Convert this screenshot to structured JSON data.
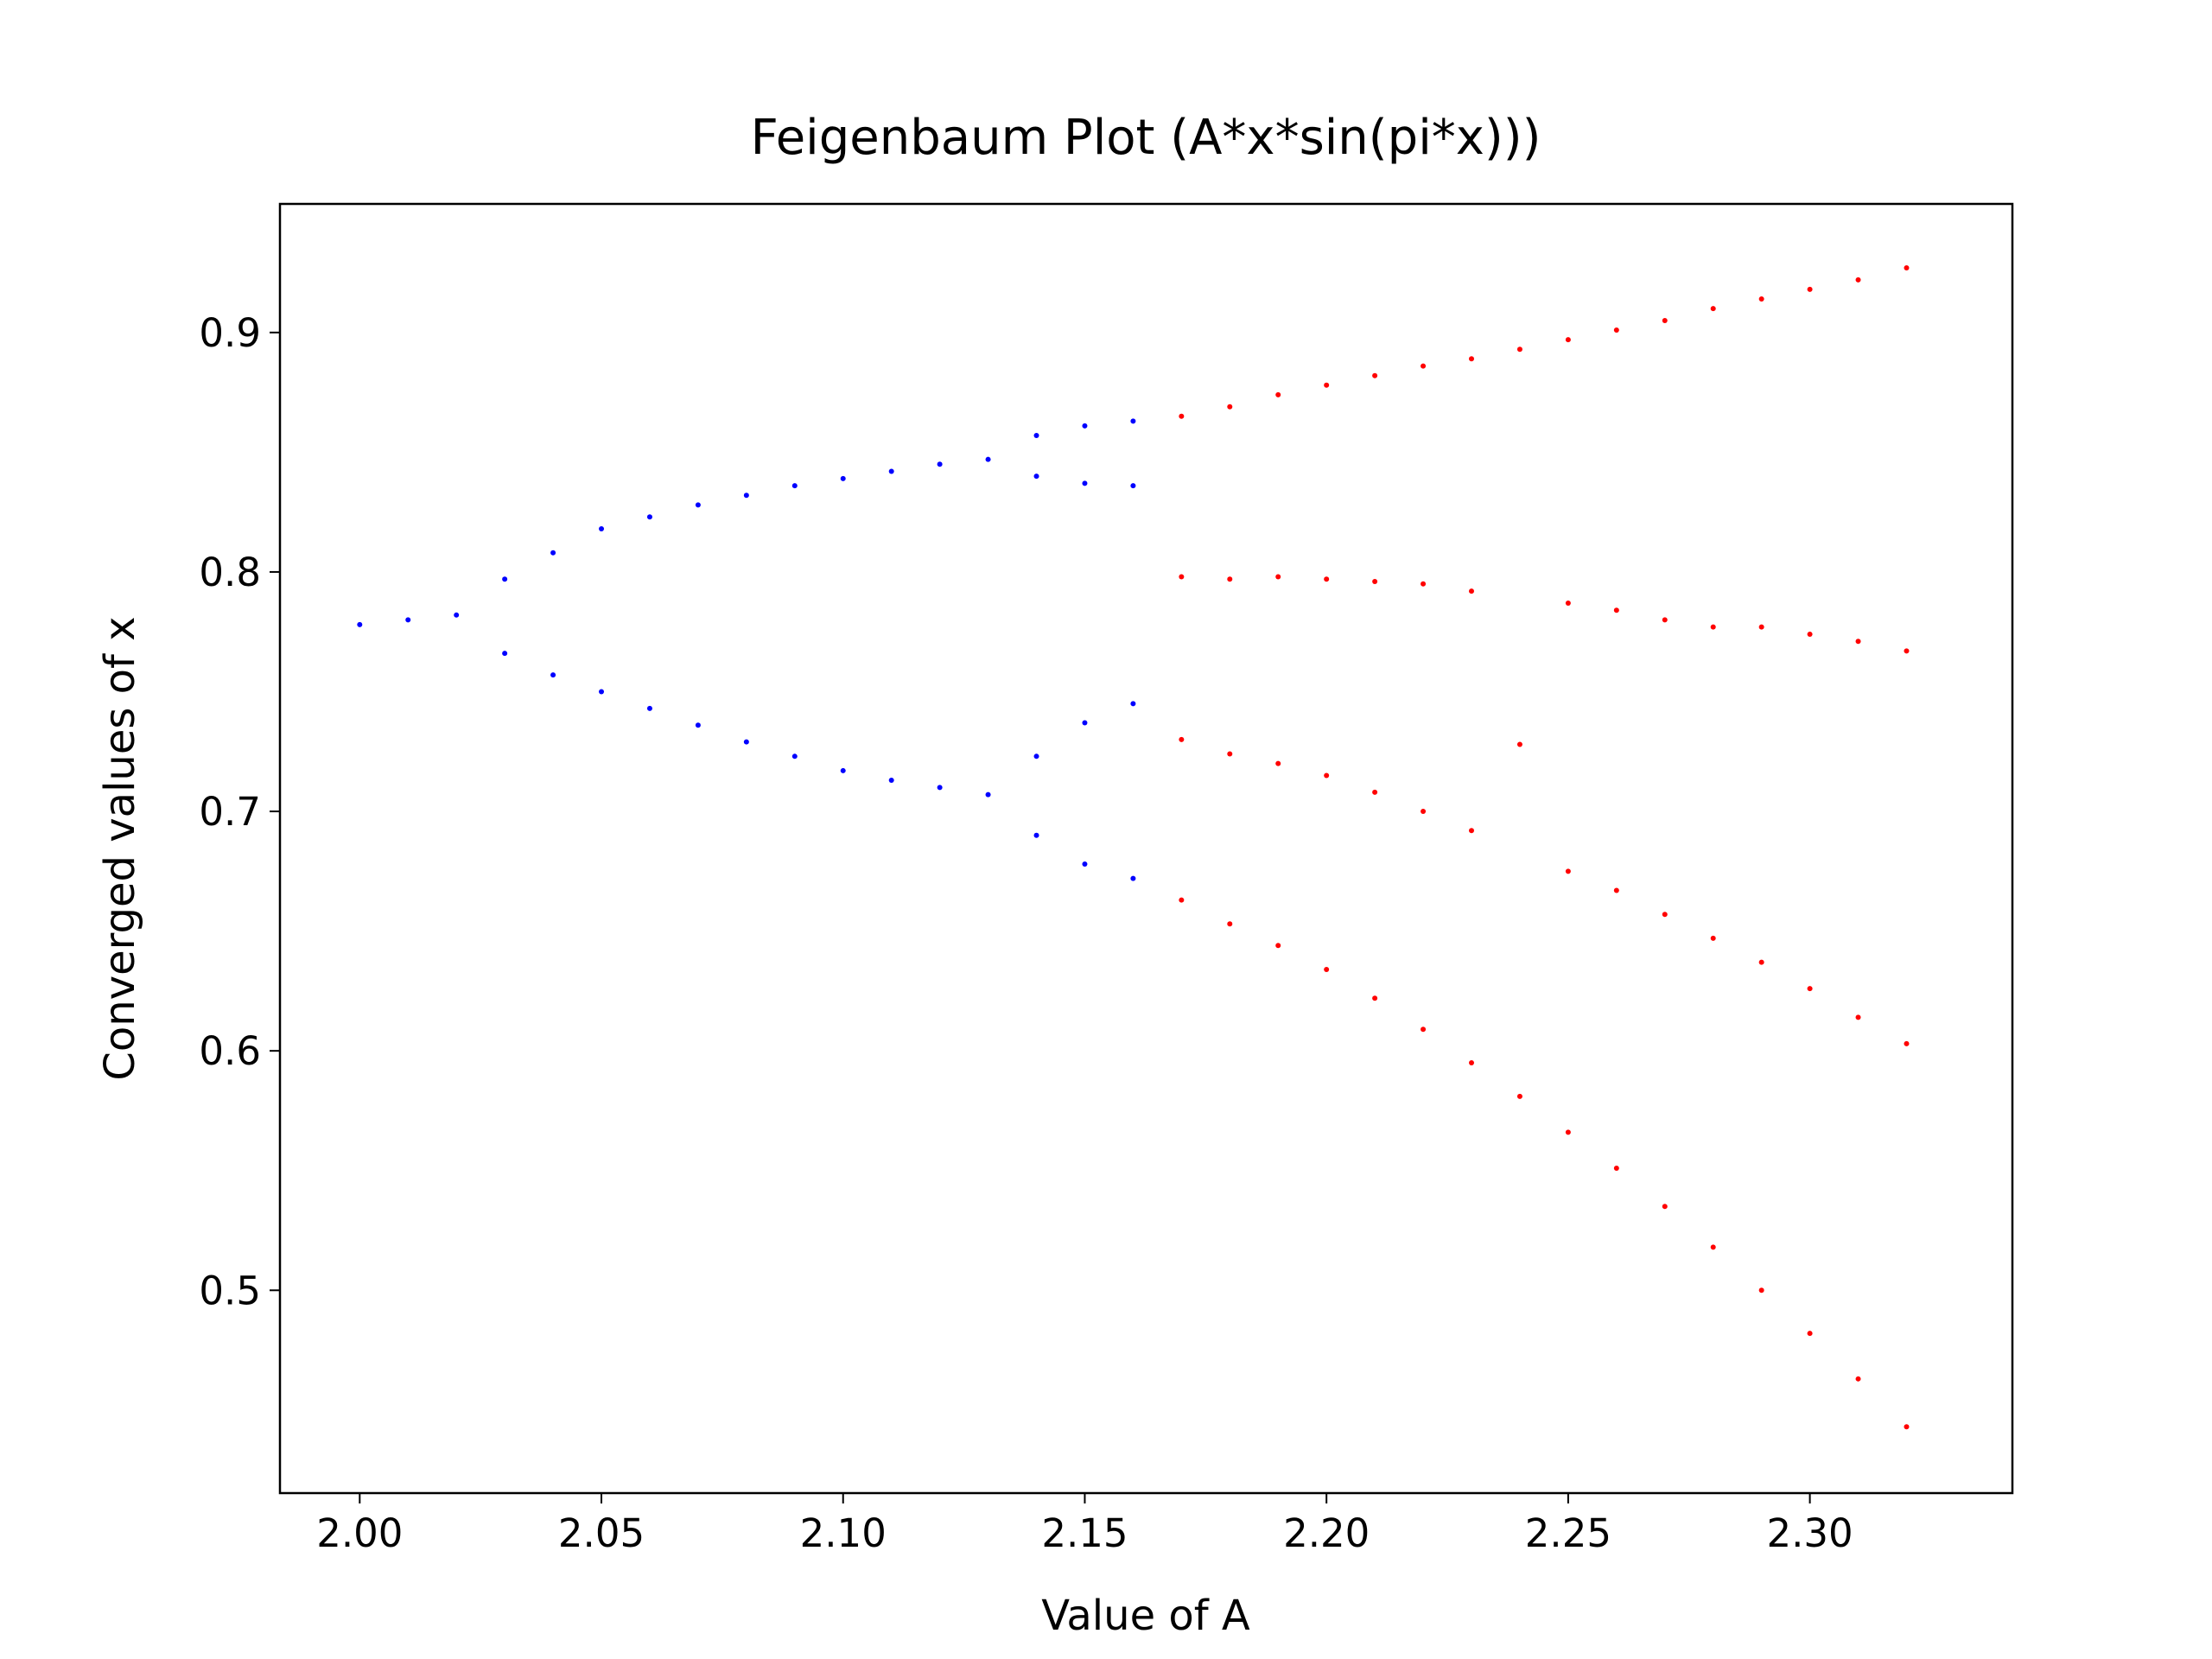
{
  "chart_data": {
    "type": "scatter",
    "title": "Feigenbaum Plot (A*x*sin(pi*x)))",
    "xlabel": "Value of A",
    "ylabel": "Converged values of x",
    "xlim": [
      1.9835,
      2.3419
    ],
    "ylim": [
      0.4153,
      0.9537
    ],
    "xticks": [
      {
        "value": 2.0,
        "label": "2.00"
      },
      2.05,
      {
        "value": 2.1,
        "label": "2.10"
      },
      2.15,
      {
        "value": 2.2,
        "label": "2.20"
      },
      2.25,
      {
        "value": 2.3,
        "label": "2.30"
      }
    ],
    "yticks": [
      0.5,
      0.6,
      0.7,
      0.8,
      0.9
    ],
    "series": [
      {
        "color": "#0000ff",
        "x": [
          2.0,
          2.01,
          2.02,
          2.03,
          2.03,
          2.04,
          2.04,
          2.05,
          2.05,
          2.06,
          2.06,
          2.07,
          2.07,
          2.08,
          2.08,
          2.09,
          2.09,
          2.1,
          2.1,
          2.11,
          2.11,
          2.12,
          2.12,
          2.13,
          2.13,
          2.14,
          2.14,
          2.14,
          2.14,
          2.15,
          2.15,
          2.15,
          2.15,
          2.16,
          2.16,
          2.16,
          2.16
        ],
        "values": [
          0.778,
          0.78,
          0.782,
          0.797,
          0.766,
          0.808,
          0.757,
          0.818,
          0.75,
          0.823,
          0.743,
          0.828,
          0.736,
          0.832,
          0.729,
          0.836,
          0.723,
          0.839,
          0.717,
          0.842,
          0.713,
          0.845,
          0.71,
          0.847,
          0.707,
          0.857,
          0.84,
          0.723,
          0.69,
          0.861,
          0.837,
          0.737,
          0.678,
          0.863,
          0.836,
          0.745,
          0.672
        ]
      },
      {
        "color": "#ff0000",
        "x": [
          2.17,
          2.17,
          2.17,
          2.17,
          2.18,
          2.18,
          2.18,
          2.18,
          2.19,
          2.19,
          2.19,
          2.19,
          2.2,
          2.2,
          2.2,
          2.2,
          2.21,
          2.21,
          2.21,
          2.21,
          2.22,
          2.22,
          2.22,
          2.22,
          2.23,
          2.23,
          2.23,
          2.23,
          2.24,
          2.24,
          2.24,
          2.25,
          2.25,
          2.25,
          2.25,
          2.26,
          2.26,
          2.26,
          2.26,
          2.27,
          2.27,
          2.27,
          2.27,
          2.28,
          2.28,
          2.28,
          2.28,
          2.29,
          2.29,
          2.29,
          2.29,
          2.3,
          2.3,
          2.3,
          2.3,
          2.31,
          2.31,
          2.31,
          2.31,
          2.32,
          2.32,
          2.32,
          2.32
        ],
        "values": [
          0.663,
          0.73,
          0.798,
          0.865,
          0.653,
          0.724,
          0.797,
          0.869,
          0.644,
          0.72,
          0.798,
          0.874,
          0.634,
          0.715,
          0.797,
          0.878,
          0.622,
          0.708,
          0.796,
          0.882,
          0.609,
          0.7,
          0.795,
          0.886,
          0.595,
          0.692,
          0.792,
          0.889,
          0.581,
          0.728,
          0.893,
          0.566,
          0.675,
          0.787,
          0.897,
          0.551,
          0.667,
          0.784,
          0.901,
          0.535,
          0.657,
          0.78,
          0.905,
          0.518,
          0.647,
          0.777,
          0.91,
          0.5,
          0.637,
          0.777,
          0.914,
          0.482,
          0.626,
          0.774,
          0.918,
          0.463,
          0.614,
          0.771,
          0.922,
          0.443,
          0.603,
          0.767,
          0.927
        ]
      }
    ]
  }
}
